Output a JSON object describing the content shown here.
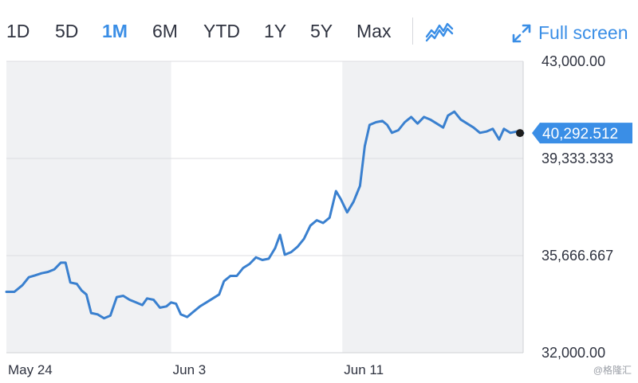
{
  "toolbar": {
    "ranges": [
      "1D",
      "5D",
      "1M",
      "6M",
      "YTD",
      "1Y",
      "5Y",
      "Max"
    ],
    "active_range": "1M",
    "chart_type_icon": "line-chart-icon",
    "fullscreen_icon": "expand-arrows-icon",
    "fullscreen_label": "Full screen"
  },
  "colors": {
    "accent": "#3a8ee6",
    "line": "#3a80cf",
    "shade": "#f0f1f3",
    "grid": "#dcdde0",
    "marker": "#1e1e1e"
  },
  "watermark": "@格隆汇",
  "chart_data": {
    "type": "line",
    "title": "",
    "xlabel": "",
    "ylabel": "",
    "ylim": [
      32000,
      43000
    ],
    "yticks": [
      "43,000.00",
      "39,333.333",
      "35,666.667",
      "32,000.00"
    ],
    "ytick_values": [
      43000,
      39333.333,
      35666.667,
      32000
    ],
    "xticks": [
      "May 24",
      "Jun 3",
      "Jun 11"
    ],
    "xtick_positions": [
      0,
      103,
      210
    ],
    "x_range": [
      0,
      323
    ],
    "shaded_bands": [
      [
        0,
        103
      ],
      [
        210,
        323
      ]
    ],
    "last_value_label": "40,292.512",
    "last_value": 40292.512,
    "grid": true,
    "series": [
      {
        "values": [
          [
            0,
            34300
          ],
          [
            5,
            34300
          ],
          [
            10,
            34550
          ],
          [
            14,
            34850
          ],
          [
            18,
            34920
          ],
          [
            22,
            35000
          ],
          [
            26,
            35050
          ],
          [
            30,
            35150
          ],
          [
            34,
            35400
          ],
          [
            37,
            35400
          ],
          [
            40,
            34650
          ],
          [
            44,
            34600
          ],
          [
            47,
            34350
          ],
          [
            50,
            34200
          ],
          [
            53,
            33500
          ],
          [
            57,
            33450
          ],
          [
            61,
            33300
          ],
          [
            65,
            33400
          ],
          [
            69,
            34100
          ],
          [
            73,
            34150
          ],
          [
            77,
            34000
          ],
          [
            81,
            33900
          ],
          [
            85,
            33800
          ],
          [
            88,
            34050
          ],
          [
            92,
            34000
          ],
          [
            96,
            33700
          ],
          [
            100,
            33750
          ],
          [
            103,
            33900
          ],
          [
            106,
            33850
          ],
          [
            109,
            33450
          ],
          [
            113,
            33350
          ],
          [
            117,
            33550
          ],
          [
            121,
            33750
          ],
          [
            125,
            33900
          ],
          [
            129,
            34050
          ],
          [
            133,
            34200
          ],
          [
            136,
            34700
          ],
          [
            140,
            34900
          ],
          [
            144,
            34900
          ],
          [
            148,
            35200
          ],
          [
            152,
            35350
          ],
          [
            156,
            35600
          ],
          [
            160,
            35500
          ],
          [
            164,
            35550
          ],
          [
            168,
            35950
          ],
          [
            171,
            36450
          ],
          [
            174,
            35700
          ],
          [
            178,
            35800
          ],
          [
            182,
            36000
          ],
          [
            186,
            36300
          ],
          [
            190,
            36800
          ],
          [
            194,
            37000
          ],
          [
            198,
            36900
          ],
          [
            202,
            37100
          ],
          [
            206,
            38100
          ],
          [
            209,
            37800
          ],
          [
            213,
            37300
          ],
          [
            217,
            37700
          ],
          [
            221,
            38300
          ],
          [
            224,
            39800
          ],
          [
            227,
            40600
          ],
          [
            231,
            40700
          ],
          [
            235,
            40750
          ],
          [
            238,
            40600
          ],
          [
            241,
            40300
          ],
          [
            245,
            40400
          ],
          [
            249,
            40700
          ],
          [
            253,
            40900
          ],
          [
            257,
            40650
          ],
          [
            261,
            40900
          ],
          [
            265,
            40800
          ],
          [
            269,
            40650
          ],
          [
            273,
            40500
          ],
          [
            276,
            40950
          ],
          [
            280,
            41100
          ],
          [
            284,
            40800
          ],
          [
            288,
            40650
          ],
          [
            292,
            40500
          ],
          [
            296,
            40300
          ],
          [
            300,
            40350
          ],
          [
            304,
            40450
          ],
          [
            308,
            40050
          ],
          [
            311,
            40450
          ],
          [
            315,
            40300
          ],
          [
            319,
            40350
          ],
          [
            323,
            40292.512
          ]
        ]
      }
    ]
  }
}
